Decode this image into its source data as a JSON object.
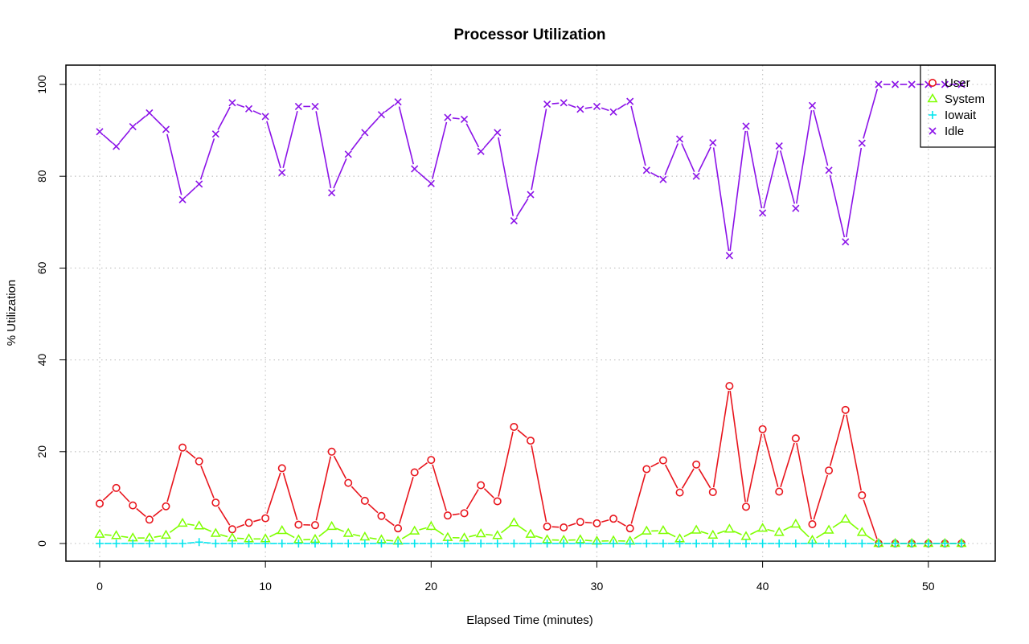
{
  "chart_data": {
    "type": "line",
    "title": "Processor Utilization",
    "xlabel": "Elapsed Time (minutes)",
    "ylabel": "% Utilization",
    "xlim": [
      0,
      52
    ],
    "ylim": [
      0,
      100
    ],
    "x_ticks": [
      0,
      10,
      20,
      30,
      40,
      50
    ],
    "y_ticks": [
      0,
      20,
      40,
      60,
      80,
      100
    ],
    "grid": true,
    "legend_position": "top-right",
    "x": [
      0,
      1,
      2,
      3,
      4,
      5,
      6,
      7,
      8,
      9,
      10,
      11,
      12,
      13,
      14,
      15,
      16,
      17,
      18,
      19,
      20,
      21,
      22,
      23,
      24,
      25,
      26,
      27,
      28,
      29,
      30,
      31,
      32,
      33,
      34,
      35,
      36,
      37,
      38,
      39,
      40,
      41,
      42,
      43,
      44,
      45,
      46,
      47,
      48,
      49,
      50,
      51,
      52
    ],
    "series": [
      {
        "name": "User",
        "color": "#e8141c",
        "marker": "circle",
        "values": [
          8.7,
          12.1,
          8.3,
          5.2,
          8.1,
          20.9,
          17.9,
          8.9,
          3.1,
          4.5,
          5.5,
          16.4,
          4.1,
          4.0,
          20.0,
          13.2,
          9.3,
          6.0,
          3.3,
          15.5,
          18.2,
          6.1,
          6.6,
          12.7,
          9.2,
          25.4,
          22.4,
          3.7,
          3.5,
          4.7,
          4.4,
          5.4,
          3.3,
          16.2,
          18.1,
          11.1,
          17.2,
          11.2,
          34.3,
          8.0,
          24.9,
          11.3,
          22.9,
          4.2,
          15.9,
          29.1,
          10.5,
          0.0,
          0.0,
          0.0,
          0.0,
          0.0,
          0.0
        ]
      },
      {
        "name": "System",
        "color": "#7fff00",
        "marker": "triangle",
        "values": [
          2.0,
          1.7,
          1.2,
          1.2,
          1.8,
          4.4,
          3.8,
          2.2,
          1.2,
          1.0,
          1.0,
          2.8,
          0.8,
          0.9,
          3.7,
          2.2,
          1.4,
          0.8,
          0.5,
          2.7,
          3.7,
          1.3,
          1.2,
          2.1,
          1.7,
          4.5,
          2.0,
          0.8,
          0.7,
          0.8,
          0.5,
          0.6,
          0.5,
          2.7,
          2.8,
          1.0,
          2.9,
          1.8,
          3.1,
          1.5,
          3.3,
          2.4,
          4.2,
          0.7,
          2.9,
          5.3,
          2.4,
          0.0,
          0.0,
          0.0,
          0.0,
          0.0,
          0.0
        ]
      },
      {
        "name": "Iowait",
        "color": "#00e5ee",
        "marker": "plus",
        "values": [
          0.0,
          0.0,
          0.0,
          0.0,
          0.0,
          0.0,
          0.3,
          0.0,
          0.0,
          0.0,
          0.0,
          0.0,
          0.0,
          0.0,
          0.0,
          0.0,
          0.0,
          0.0,
          0.0,
          0.0,
          0.0,
          0.0,
          0.0,
          0.0,
          0.0,
          0.0,
          0.0,
          0.0,
          0.0,
          0.0,
          0.0,
          0.0,
          0.0,
          0.0,
          0.0,
          0.0,
          0.0,
          0.0,
          0.0,
          0.0,
          0.0,
          0.0,
          0.0,
          0.0,
          0.0,
          0.0,
          0.0,
          0.0,
          0.0,
          0.0,
          0.0,
          0.0,
          0.0
        ]
      },
      {
        "name": "Idle",
        "color": "#8b12e8",
        "marker": "cross",
        "values": [
          89.7,
          86.5,
          90.8,
          93.8,
          90.2,
          74.9,
          78.3,
          89.2,
          96.0,
          94.7,
          93.0,
          80.8,
          95.2,
          95.2,
          76.4,
          84.8,
          89.5,
          93.4,
          96.2,
          81.6,
          78.4,
          92.8,
          92.4,
          85.4,
          89.5,
          70.3,
          76.0,
          95.7,
          96.0,
          94.6,
          95.2,
          94.0,
          96.3,
          81.3,
          79.3,
          88.1,
          80.0,
          87.3,
          62.7,
          90.9,
          72.0,
          86.6,
          73.0,
          95.4,
          81.3,
          65.7,
          87.2,
          100.0,
          100.0,
          100.0,
          100.0,
          100.0,
          100.0
        ]
      }
    ]
  }
}
